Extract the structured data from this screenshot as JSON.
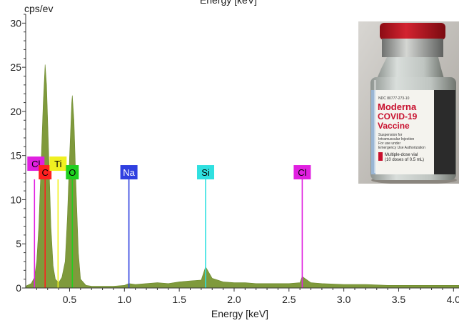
{
  "chart_data": {
    "type": "area",
    "title": "Energy [keV]",
    "xlabel": "Energy [keV]",
    "ylabel": "cps/ev",
    "xlim": [
      0.1,
      4.05
    ],
    "ylim": [
      0,
      31
    ],
    "x_ticks": [
      0.5,
      1.0,
      1.5,
      2.0,
      2.5,
      3.0,
      3.5,
      4.0
    ],
    "x_tick_labels": [
      "0.5",
      "1.0",
      "1.5",
      "2.0",
      "2.5",
      "3.0",
      "3.5",
      "4.0"
    ],
    "y_ticks": [
      0,
      5,
      10,
      15,
      20,
      25,
      30
    ],
    "y_tick_labels": [
      "0",
      "5",
      "10",
      "15",
      "20",
      "25",
      "30"
    ],
    "series": [
      {
        "color": "#7f9a3c",
        "x": [
          0.1,
          0.15,
          0.18,
          0.2,
          0.22,
          0.24,
          0.26,
          0.277,
          0.29,
          0.31,
          0.33,
          0.35,
          0.37,
          0.4,
          0.43,
          0.46,
          0.48,
          0.5,
          0.52,
          0.525,
          0.54,
          0.56,
          0.58,
          0.6,
          0.65,
          0.7,
          0.8,
          0.9,
          1.0,
          1.041,
          1.1,
          1.2,
          1.3,
          1.4,
          1.5,
          1.6,
          1.7,
          1.74,
          1.8,
          1.9,
          2.0,
          2.1,
          2.2,
          2.3,
          2.4,
          2.5,
          2.6,
          2.62,
          2.7,
          2.8,
          3.0,
          3.2,
          3.4,
          3.6,
          3.8,
          4.05
        ],
        "y": [
          0.2,
          0.5,
          1.2,
          3.0,
          7.0,
          14.0,
          21.0,
          25.3,
          23.0,
          15.0,
          7.0,
          2.5,
          1.0,
          0.6,
          1.2,
          3.0,
          8.0,
          15.0,
          21.0,
          21.8,
          19.0,
          11.0,
          4.0,
          1.0,
          0.3,
          0.2,
          0.2,
          0.2,
          0.3,
          0.5,
          0.4,
          0.5,
          0.6,
          0.5,
          0.7,
          0.8,
          0.9,
          2.4,
          1.1,
          0.7,
          0.6,
          0.6,
          0.5,
          0.5,
          0.5,
          0.5,
          0.6,
          1.3,
          0.6,
          0.5,
          0.4,
          0.4,
          0.3,
          0.3,
          0.3,
          0.3
        ]
      }
    ],
    "element_markers": [
      {
        "label": "Cl",
        "energy": 0.18,
        "height": 12.3,
        "color": "#e020e0",
        "text_color": "#000000"
      },
      {
        "label": "C",
        "energy": 0.277,
        "height": 12.3,
        "color": "#ff2020",
        "text_color": "#000000"
      },
      {
        "label": "Ti",
        "energy": 0.395,
        "height": 12.3,
        "color": "#f0f020",
        "text_color": "#000000"
      },
      {
        "label": "O",
        "energy": 0.525,
        "height": 12.3,
        "color": "#20d020",
        "text_color": "#000000"
      },
      {
        "label": "Na",
        "energy": 1.041,
        "height": 12.3,
        "color": "#3040e0",
        "text_color": "#ffffff"
      },
      {
        "label": "Si",
        "energy": 1.74,
        "height": 12.3,
        "color": "#30e0e0",
        "text_color": "#000000"
      },
      {
        "label": "Cl",
        "energy": 2.621,
        "height": 12.3,
        "color": "#e020e0",
        "text_color": "#000000"
      }
    ]
  },
  "inset_photo": {
    "description_icon": "vaccine-vial-photo",
    "text_lines": [
      "NDC 80777-273-10",
      "Moderna",
      "COVID-19",
      "Vaccine",
      "Suspension for",
      "Intramuscular Injection",
      "For use under",
      "Emergency Use Authorization",
      "Multiple-dose vial",
      "(10 doses of 0.5 mL)"
    ]
  }
}
